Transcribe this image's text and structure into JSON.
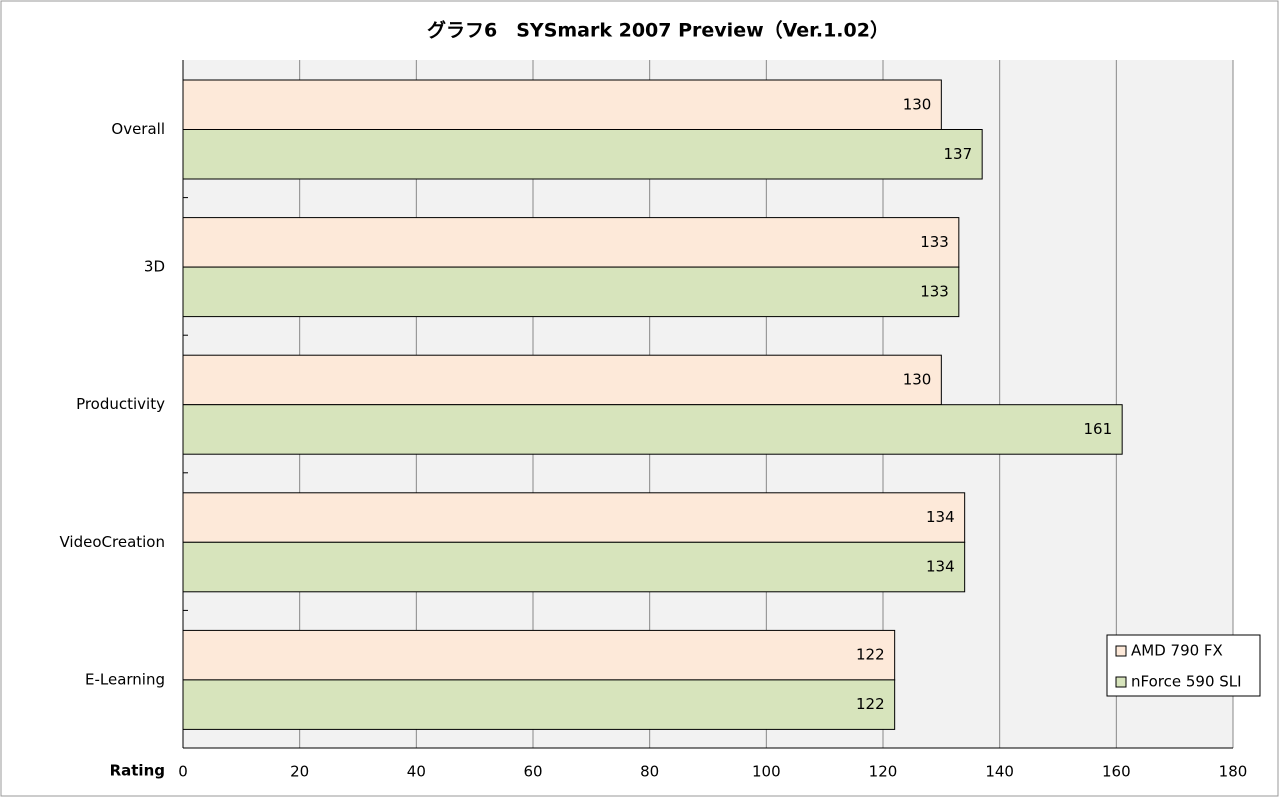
{
  "chart_data": {
    "type": "barh",
    "title": "グラフ6　SYSmark 2007 Preview（Ver.1.02）",
    "x_label": "Rating",
    "categories": [
      "Overall",
      "3D",
      "Productivity",
      "VideoCreation",
      "E-Learning"
    ],
    "series": [
      {
        "name": "AMD 790  FX",
        "color": "#fde9d9",
        "values": [
          130,
          133,
          130,
          134,
          122
        ]
      },
      {
        "name": "nForce 590  SLI",
        "color": "#d7e4bc",
        "values": [
          137,
          133,
          161,
          134,
          122
        ]
      }
    ],
    "xlim": [
      0,
      180
    ],
    "xticks": [
      0,
      20,
      40,
      60,
      80,
      100,
      120,
      140,
      160,
      180
    ],
    "grid": true,
    "legend": "lower-right"
  }
}
